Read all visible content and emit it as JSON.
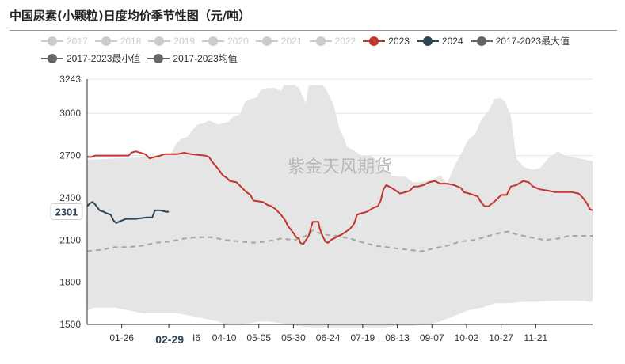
{
  "title": "中国尿素(小颗粒)日度均价季节性图（元/吨）",
  "watermark": "紫金天风期货",
  "chart_data": {
    "type": "line",
    "y_ticks": [
      1500,
      1800,
      2100,
      2400,
      2700,
      3000,
      3243
    ],
    "ylim": [
      1500,
      3243
    ],
    "x_tick_labels": [
      "01-26",
      "02-29",
      "04-10",
      "05-05",
      "05-30",
      "06-24",
      "07-19",
      "08-13",
      "09-07",
      "10-02",
      "10-27",
      "11-21"
    ],
    "x_tick_partial": "I6",
    "x_tick_days": [
      25,
      59,
      99,
      124,
      149,
      174,
      199,
      224,
      249,
      274,
      299,
      324
    ],
    "x_range_days": [
      0,
      365
    ],
    "current_y_label": "2301",
    "current_x_label": "02-29",
    "legend": [
      {
        "name": "2017",
        "color": "#cccccc",
        "inactive": true
      },
      {
        "name": "2018",
        "color": "#cccccc",
        "inactive": true
      },
      {
        "name": "2019",
        "color": "#cccccc",
        "inactive": true
      },
      {
        "name": "2020",
        "color": "#cccccc",
        "inactive": true
      },
      {
        "name": "2021",
        "color": "#cccccc",
        "inactive": true
      },
      {
        "name": "2022",
        "color": "#cccccc",
        "inactive": true
      },
      {
        "name": "2023",
        "color": "#c23531",
        "inactive": false
      },
      {
        "name": "2024",
        "color": "#2f4554",
        "inactive": false
      },
      {
        "name": "2017-2023最大值",
        "color": "#666666",
        "inactive": false
      },
      {
        "name": "2017-2023最小值",
        "color": "#666666",
        "inactive": false
      },
      {
        "name": "2017-2023均值",
        "color": "#666666",
        "inactive": false
      }
    ],
    "series": [
      {
        "name": "2017-2023最大值",
        "type": "band-upper",
        "color": "#e5e5e5",
        "points": [
          [
            0,
            2670
          ],
          [
            45,
            2690
          ],
          [
            55,
            2700
          ],
          [
            60,
            2700
          ],
          [
            64,
            2780
          ],
          [
            68,
            2820
          ],
          [
            72,
            2830
          ],
          [
            76,
            2880
          ],
          [
            80,
            2920
          ],
          [
            84,
            2930
          ],
          [
            88,
            2950
          ],
          [
            95,
            2920
          ],
          [
            102,
            2940
          ],
          [
            106,
            2980
          ],
          [
            110,
            2990
          ],
          [
            114,
            3080
          ],
          [
            118,
            3100
          ],
          [
            122,
            3110
          ],
          [
            126,
            3170
          ],
          [
            130,
            3180
          ],
          [
            136,
            3180
          ],
          [
            140,
            3160
          ],
          [
            142,
            3200
          ],
          [
            150,
            3200
          ],
          [
            153,
            3180
          ],
          [
            158,
            3070
          ],
          [
            160,
            3200
          ],
          [
            170,
            3200
          ],
          [
            172,
            3180
          ],
          [
            178,
            3060
          ],
          [
            182,
            2900
          ],
          [
            188,
            2760
          ],
          [
            192,
            2740
          ],
          [
            198,
            2700
          ],
          [
            204,
            2700
          ],
          [
            208,
            2680
          ],
          [
            215,
            2600
          ],
          [
            220,
            2560
          ],
          [
            225,
            2550
          ],
          [
            230,
            2550
          ],
          [
            235,
            2510
          ],
          [
            240,
            2510
          ],
          [
            245,
            2520
          ],
          [
            250,
            2530
          ],
          [
            255,
            2560
          ],
          [
            260,
            2500
          ],
          [
            265,
            2620
          ],
          [
            270,
            2710
          ],
          [
            275,
            2810
          ],
          [
            280,
            2850
          ],
          [
            285,
            2960
          ],
          [
            290,
            3020
          ],
          [
            294,
            3100
          ],
          [
            298,
            3110
          ],
          [
            302,
            3080
          ],
          [
            306,
            2980
          ],
          [
            310,
            2680
          ],
          [
            315,
            2620
          ],
          [
            322,
            2600
          ],
          [
            327,
            2610
          ],
          [
            333,
            2680
          ],
          [
            340,
            2730
          ],
          [
            345,
            2700
          ],
          [
            350,
            2690
          ],
          [
            355,
            2680
          ],
          [
            360,
            2670
          ],
          [
            365,
            2660
          ]
        ]
      },
      {
        "name": "2017-2023最小值",
        "type": "band-lower",
        "color": "#ffffff",
        "points": [
          [
            0,
            1600
          ],
          [
            5,
            1620
          ],
          [
            15,
            1620
          ],
          [
            20,
            1620
          ],
          [
            25,
            1610
          ],
          [
            30,
            1600
          ],
          [
            40,
            1580
          ],
          [
            55,
            1580
          ],
          [
            65,
            1580
          ],
          [
            75,
            1560
          ],
          [
            85,
            1540
          ],
          [
            95,
            1520
          ],
          [
            100,
            1500
          ],
          [
            108,
            1500
          ],
          [
            118,
            1510
          ],
          [
            125,
            1520
          ],
          [
            130,
            1520
          ],
          [
            140,
            1510
          ],
          [
            150,
            1490
          ],
          [
            160,
            1480
          ],
          [
            170,
            1480
          ],
          [
            180,
            1480
          ],
          [
            190,
            1480
          ],
          [
            200,
            1480
          ],
          [
            210,
            1480
          ],
          [
            215,
            1480
          ],
          [
            225,
            1490
          ],
          [
            235,
            1490
          ],
          [
            245,
            1500
          ],
          [
            255,
            1520
          ],
          [
            265,
            1560
          ],
          [
            275,
            1600
          ],
          [
            285,
            1620
          ],
          [
            295,
            1650
          ],
          [
            305,
            1650
          ],
          [
            315,
            1660
          ],
          [
            325,
            1660
          ],
          [
            340,
            1670
          ],
          [
            355,
            1670
          ],
          [
            365,
            1660
          ]
        ]
      },
      {
        "name": "2017-2023均值",
        "type": "dashed",
        "color": "#a5a5a5",
        "points": [
          [
            0,
            2020
          ],
          [
            10,
            2030
          ],
          [
            20,
            2050
          ],
          [
            30,
            2050
          ],
          [
            40,
            2060
          ],
          [
            50,
            2080
          ],
          [
            60,
            2090
          ],
          [
            70,
            2110
          ],
          [
            80,
            2120
          ],
          [
            90,
            2120
          ],
          [
            100,
            2100
          ],
          [
            110,
            2090
          ],
          [
            120,
            2080
          ],
          [
            130,
            2090
          ],
          [
            140,
            2110
          ],
          [
            150,
            2100
          ],
          [
            158,
            2130
          ],
          [
            163,
            2170
          ],
          [
            170,
            2140
          ],
          [
            180,
            2130
          ],
          [
            190,
            2110
          ],
          [
            200,
            2080
          ],
          [
            208,
            2060
          ],
          [
            216,
            2050
          ],
          [
            224,
            2040
          ],
          [
            232,
            2030
          ],
          [
            242,
            2020
          ],
          [
            250,
            2040
          ],
          [
            260,
            2060
          ],
          [
            270,
            2090
          ],
          [
            280,
            2100
          ],
          [
            290,
            2130
          ],
          [
            298,
            2150
          ],
          [
            304,
            2160
          ],
          [
            310,
            2140
          ],
          [
            320,
            2120
          ],
          [
            330,
            2100
          ],
          [
            340,
            2110
          ],
          [
            348,
            2130
          ],
          [
            356,
            2130
          ],
          [
            365,
            2130
          ]
        ]
      },
      {
        "name": "2023",
        "type": "line",
        "color": "#c23531",
        "points": [
          [
            0,
            2690
          ],
          [
            3,
            2690
          ],
          [
            6,
            2700
          ],
          [
            15,
            2700
          ],
          [
            25,
            2700
          ],
          [
            30,
            2700
          ],
          [
            32,
            2720
          ],
          [
            35,
            2730
          ],
          [
            42,
            2710
          ],
          [
            45,
            2680
          ],
          [
            49,
            2690
          ],
          [
            53,
            2700
          ],
          [
            56,
            2710
          ],
          [
            65,
            2710
          ],
          [
            70,
            2720
          ],
          [
            75,
            2710
          ],
          [
            85,
            2700
          ],
          [
            88,
            2690
          ],
          [
            90,
            2660
          ],
          [
            95,
            2600
          ],
          [
            98,
            2560
          ],
          [
            101,
            2540
          ],
          [
            103,
            2520
          ],
          [
            108,
            2510
          ],
          [
            111,
            2480
          ],
          [
            115,
            2440
          ],
          [
            118,
            2420
          ],
          [
            120,
            2380
          ],
          [
            127,
            2370
          ],
          [
            130,
            2350
          ],
          [
            133,
            2340
          ],
          [
            136,
            2320
          ],
          [
            138,
            2300
          ],
          [
            140,
            2280
          ],
          [
            143,
            2240
          ],
          [
            145,
            2200
          ],
          [
            149,
            2150
          ],
          [
            151,
            2120
          ],
          [
            153,
            2110
          ],
          [
            154,
            2080
          ],
          [
            156,
            2070
          ],
          [
            158,
            2100
          ],
          [
            160,
            2130
          ],
          [
            162,
            2200
          ],
          [
            163,
            2230
          ],
          [
            167,
            2230
          ],
          [
            168,
            2180
          ],
          [
            170,
            2130
          ],
          [
            172,
            2090
          ],
          [
            174,
            2080
          ],
          [
            176,
            2100
          ],
          [
            180,
            2120
          ],
          [
            184,
            2140
          ],
          [
            187,
            2160
          ],
          [
            190,
            2180
          ],
          [
            193,
            2220
          ],
          [
            195,
            2280
          ],
          [
            198,
            2290
          ],
          [
            202,
            2300
          ],
          [
            207,
            2330
          ],
          [
            210,
            2340
          ],
          [
            212,
            2380
          ],
          [
            214,
            2460
          ],
          [
            216,
            2490
          ],
          [
            220,
            2470
          ],
          [
            223,
            2450
          ],
          [
            226,
            2430
          ],
          [
            230,
            2440
          ],
          [
            233,
            2450
          ],
          [
            236,
            2480
          ],
          [
            239,
            2480
          ],
          [
            243,
            2490
          ],
          [
            247,
            2510
          ],
          [
            251,
            2520
          ],
          [
            255,
            2500
          ],
          [
            260,
            2500
          ],
          [
            265,
            2490
          ],
          [
            270,
            2470
          ],
          [
            272,
            2440
          ],
          [
            276,
            2430
          ],
          [
            282,
            2410
          ],
          [
            285,
            2360
          ],
          [
            287,
            2340
          ],
          [
            290,
            2340
          ],
          [
            295,
            2380
          ],
          [
            299,
            2420
          ],
          [
            303,
            2420
          ],
          [
            306,
            2480
          ],
          [
            310,
            2490
          ],
          [
            315,
            2520
          ],
          [
            319,
            2510
          ],
          [
            322,
            2480
          ],
          [
            327,
            2460
          ],
          [
            333,
            2450
          ],
          [
            338,
            2440
          ],
          [
            342,
            2440
          ],
          [
            350,
            2440
          ],
          [
            355,
            2430
          ],
          [
            358,
            2400
          ],
          [
            361,
            2360
          ],
          [
            363,
            2320
          ],
          [
            365,
            2310
          ]
        ]
      },
      {
        "name": "2024",
        "type": "line",
        "color": "#2f4554",
        "points": [
          [
            0,
            2340
          ],
          [
            2,
            2360
          ],
          [
            4,
            2370
          ],
          [
            6,
            2350
          ],
          [
            9,
            2310
          ],
          [
            12,
            2300
          ],
          [
            14,
            2290
          ],
          [
            17,
            2280
          ],
          [
            19,
            2240
          ],
          [
            21,
            2220
          ],
          [
            23,
            2230
          ],
          [
            28,
            2250
          ],
          [
            35,
            2250
          ],
          [
            43,
            2260
          ],
          [
            47,
            2260
          ],
          [
            49,
            2310
          ],
          [
            53,
            2310
          ],
          [
            57,
            2300
          ],
          [
            59,
            2301
          ]
        ]
      }
    ]
  }
}
